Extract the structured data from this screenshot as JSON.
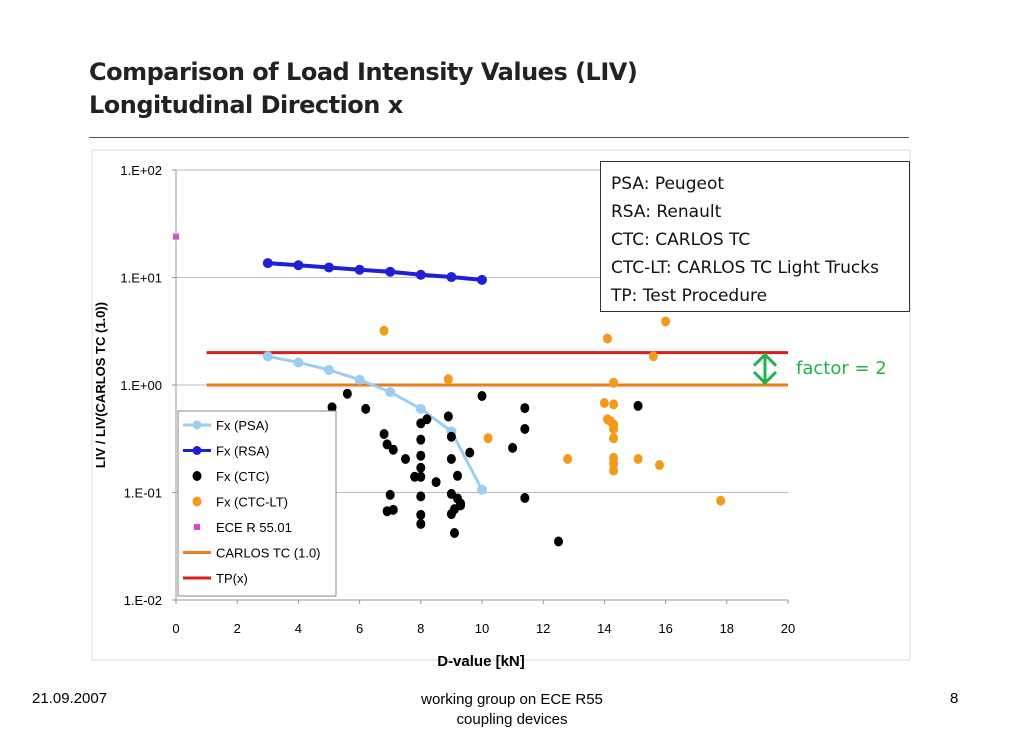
{
  "title": {
    "line1": "Comparison of Load Intensity Values (LIV)",
    "line2": "Longitudinal Direction x"
  },
  "abbreviations": [
    "PSA: Peugeot",
    "RSA: Renault",
    "CTC: CARLOS TC",
    "CTC-LT: CARLOS TC Light Trucks",
    "TP: Test Procedure"
  ],
  "factor_annotation": "factor = 2",
  "footer": {
    "date": "21.09.2007",
    "center_line1": "working group on ECE R55",
    "center_line2": "coupling devices",
    "page": "8"
  },
  "colors": {
    "psa": "#9dcdf0",
    "rsa": "#1f1fd6",
    "ctc": "#000000",
    "ctc_lt": "#f39a1c",
    "ece": "#e83fd0",
    "carlos_line": "#ee7c1b",
    "tp_line": "#dd1e1e",
    "factor": "#22b14c",
    "grid": "#bbbbbb"
  },
  "chart_data": {
    "type": "scatter",
    "xlabel": "D-value [kN]",
    "ylabel": "LIV / LIV(CARLOS TC (1.0))",
    "xlim": [
      0,
      20
    ],
    "ylim": [
      0.01,
      100
    ],
    "y_scale": "log",
    "x_ticks": [
      "0",
      "2",
      "4",
      "6",
      "8",
      "10",
      "12",
      "14",
      "16",
      "18",
      "20"
    ],
    "y_ticks": [
      "1.E-02",
      "1.E-01",
      "1.E+00",
      "1.E+01",
      "1.E+02"
    ],
    "grid": "horizontal",
    "legend_position": "bottom-left",
    "series": [
      {
        "name": "Fx (PSA)",
        "kind": "line-marker",
        "color_key": "psa",
        "points": [
          [
            3,
            1.85
          ],
          [
            4,
            1.62
          ],
          [
            5,
            1.38
          ],
          [
            6,
            1.12
          ],
          [
            7,
            0.86
          ],
          [
            8,
            0.6
          ],
          [
            9,
            0.37
          ],
          [
            10,
            0.106
          ]
        ]
      },
      {
        "name": "Fx (RSA)",
        "kind": "line-marker",
        "color_key": "rsa",
        "points": [
          [
            3,
            13.6
          ],
          [
            4,
            13.0
          ],
          [
            5,
            12.4
          ],
          [
            6,
            11.8
          ],
          [
            7,
            11.3
          ],
          [
            8,
            10.6
          ],
          [
            9,
            10.1
          ],
          [
            10,
            9.5
          ]
        ]
      },
      {
        "name": "Fx (CTC)",
        "kind": "scatter",
        "color_key": "ctc",
        "points": [
          [
            5.1,
            0.62
          ],
          [
            5.6,
            0.83
          ],
          [
            6.2,
            0.6
          ],
          [
            6.8,
            0.35
          ],
          [
            6.9,
            0.28
          ],
          [
            7.1,
            0.25
          ],
          [
            6.9,
            0.067
          ],
          [
            7.1,
            0.069
          ],
          [
            7.0,
            0.095
          ],
          [
            7.5,
            0.205
          ],
          [
            7.8,
            0.14
          ],
          [
            8.0,
            0.44
          ],
          [
            8.0,
            0.31
          ],
          [
            8.0,
            0.22
          ],
          [
            8.0,
            0.17
          ],
          [
            8.0,
            0.14
          ],
          [
            8.0,
            0.092
          ],
          [
            8.0,
            0.062
          ],
          [
            8.0,
            0.051
          ],
          [
            8.2,
            0.48
          ],
          [
            8.5,
            0.125
          ],
          [
            8.9,
            0.51
          ],
          [
            9.0,
            0.33
          ],
          [
            9.0,
            0.205
          ],
          [
            9.0,
            0.097
          ],
          [
            9.0,
            0.063
          ],
          [
            9.2,
            0.143
          ],
          [
            9.2,
            0.088
          ],
          [
            9.3,
            0.076
          ],
          [
            9.1,
            0.07
          ],
          [
            9.3,
            0.079
          ],
          [
            9.1,
            0.042
          ],
          [
            9.6,
            0.235
          ],
          [
            10.0,
            0.79
          ],
          [
            11.0,
            0.26
          ],
          [
            11.4,
            0.61
          ],
          [
            11.4,
            0.39
          ],
          [
            11.4,
            0.089
          ],
          [
            12.5,
            0.035
          ],
          [
            15.1,
            0.64
          ]
        ]
      },
      {
        "name": "Fx (CTC-LT)",
        "kind": "scatter",
        "color_key": "ctc_lt",
        "points": [
          [
            6.8,
            3.2
          ],
          [
            8.9,
            1.13
          ],
          [
            10.2,
            0.32
          ],
          [
            12.8,
            0.205
          ],
          [
            14.1,
            2.7
          ],
          [
            14.0,
            0.68
          ],
          [
            14.1,
            0.48
          ],
          [
            14.2,
            0.46
          ],
          [
            14.3,
            0.43
          ],
          [
            14.3,
            0.39
          ],
          [
            14.3,
            0.32
          ],
          [
            14.3,
            0.21
          ],
          [
            14.3,
            0.185
          ],
          [
            14.3,
            0.16
          ],
          [
            14.3,
            1.05
          ],
          [
            14.3,
            0.66
          ],
          [
            15.1,
            0.205
          ],
          [
            15.6,
            1.85
          ],
          [
            15.8,
            0.18
          ],
          [
            16.0,
            3.9
          ],
          [
            17.8,
            0.084
          ]
        ]
      },
      {
        "name": "ECE R 55.01",
        "kind": "square",
        "color_key": "ece",
        "points": [
          [
            0,
            24
          ]
        ]
      },
      {
        "name": "CARLOS TC (1.0)",
        "kind": "hline",
        "color_key": "carlos_line",
        "points": [
          [
            1,
            1.0
          ],
          [
            20,
            1.0
          ]
        ]
      },
      {
        "name": "TP(x)",
        "kind": "hline",
        "color_key": "tp_line",
        "points": [
          [
            1,
            2.0
          ],
          [
            20,
            2.0
          ]
        ]
      }
    ]
  }
}
